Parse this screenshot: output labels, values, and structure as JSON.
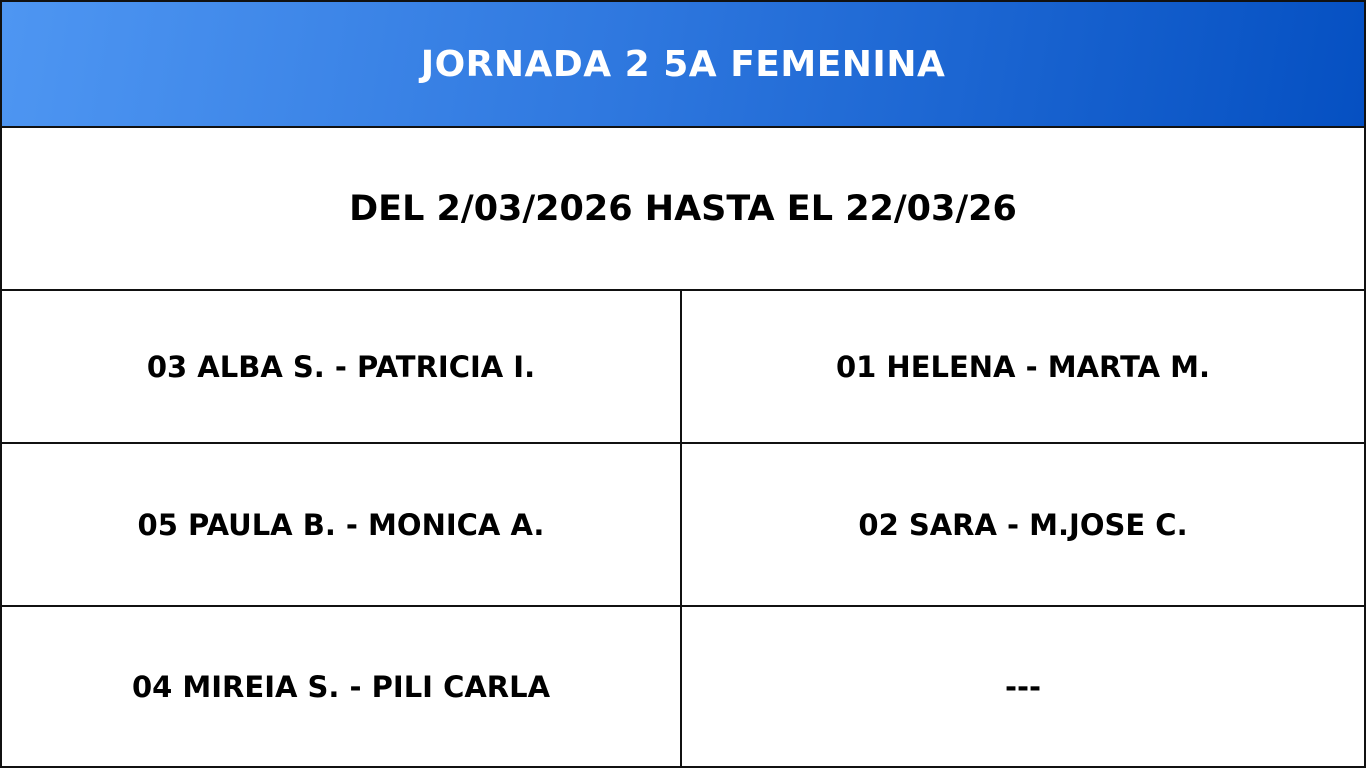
{
  "header": {
    "title": "JORNADA 2 5A FEMENINA",
    "gradient_start": "#4e96f2",
    "gradient_end": "#0550c2"
  },
  "date_range": "DEL 2/03/2026 HASTA EL 22/03/26",
  "matches": [
    {
      "left": "03 ALBA S. - PATRICIA I.",
      "right": "01 HELENA - MARTA M."
    },
    {
      "left": "05 PAULA B. - MONICA A.",
      "right": "02 SARA - M.JOSE C."
    },
    {
      "left": "04 MIREIA S. - PILI CARLA",
      "right": "---"
    }
  ]
}
